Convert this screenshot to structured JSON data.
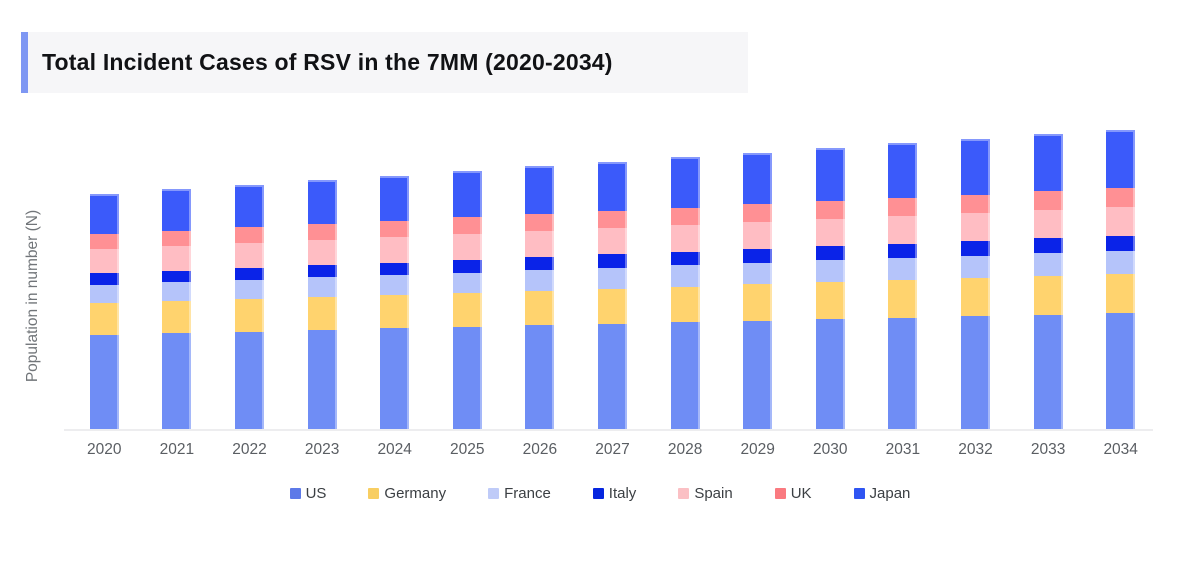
{
  "title": {
    "text": "Total Incident Cases of RSV in the 7MM (2020-2034)"
  },
  "accent_color": "#7e97f3",
  "title_bg_color": "#f6f6f8",
  "chart_data": {
    "type": "bar",
    "stacked": true,
    "title": "Total Incident Cases of RSV in the 7MM (2020-2034)",
    "xlabel": "",
    "ylabel": "Population in number (N)",
    "units": "relative height (no numeric y-axis ticks shown in chart)",
    "grid": "off",
    "legend_position": "bottom",
    "ylim": [
      0,
      320
    ],
    "categories": [
      "2020",
      "2021",
      "2022",
      "2023",
      "2024",
      "2025",
      "2026",
      "2027",
      "2028",
      "2029",
      "2030",
      "2031",
      "2032",
      "2033",
      "2034"
    ],
    "series": [
      {
        "name": "US",
        "color": "#6f8df5",
        "legend_color": "#5d79e8",
        "values": [
          94.3,
          95.9,
          97.4,
          99.0,
          100.5,
          102.1,
          103.6,
          105.2,
          106.7,
          108.3,
          109.8,
          111.4,
          112.9,
          114.5,
          116.0
        ]
      },
      {
        "name": "Germany",
        "color": "#ffd36e",
        "legend_color": "#f8ce62",
        "values": [
          31.3,
          31.9,
          32.4,
          33.0,
          33.5,
          34.1,
          34.6,
          35.2,
          35.7,
          36.3,
          36.8,
          37.4,
          37.9,
          38.5,
          39.0
        ]
      },
      {
        "name": "France",
        "color": "#b5c4fa",
        "legend_color": "#bfcbf8",
        "values": [
          18.4,
          18.8,
          19.1,
          19.5,
          19.8,
          20.2,
          20.5,
          20.9,
          21.2,
          21.6,
          21.9,
          22.3,
          22.6,
          23.0,
          23.3
        ]
      },
      {
        "name": "Italy",
        "color": "#0a23e8",
        "legend_color": "#0626df",
        "values": [
          11.6,
          11.8,
          12.1,
          12.3,
          12.6,
          12.8,
          13.1,
          13.3,
          13.5,
          13.8,
          14.0,
          14.3,
          14.5,
          14.8,
          15.0
        ]
      },
      {
        "name": "Spain",
        "color": "#ffbdc3",
        "legend_color": "#fbc0c4",
        "values": [
          24.4,
          24.7,
          25.0,
          25.2,
          25.5,
          25.8,
          26.1,
          26.4,
          26.6,
          26.9,
          27.2,
          27.5,
          27.7,
          28.0,
          28.3
        ]
      },
      {
        "name": "UK",
        "color": "#ff9094",
        "legend_color": "#fa7a80",
        "values": [
          15.0,
          15.3,
          15.6,
          15.9,
          16.3,
          16.6,
          16.9,
          17.2,
          17.5,
          17.8,
          18.1,
          18.5,
          18.8,
          19.1,
          19.4
        ]
      },
      {
        "name": "Japan",
        "color": "#3b5afa",
        "legend_color": "#2f55f2",
        "values": [
          40.0,
          41.3,
          42.6,
          43.9,
          45.2,
          46.5,
          47.8,
          49.1,
          50.5,
          51.8,
          53.1,
          54.4,
          55.7,
          57.0,
          58.3
        ]
      }
    ]
  }
}
